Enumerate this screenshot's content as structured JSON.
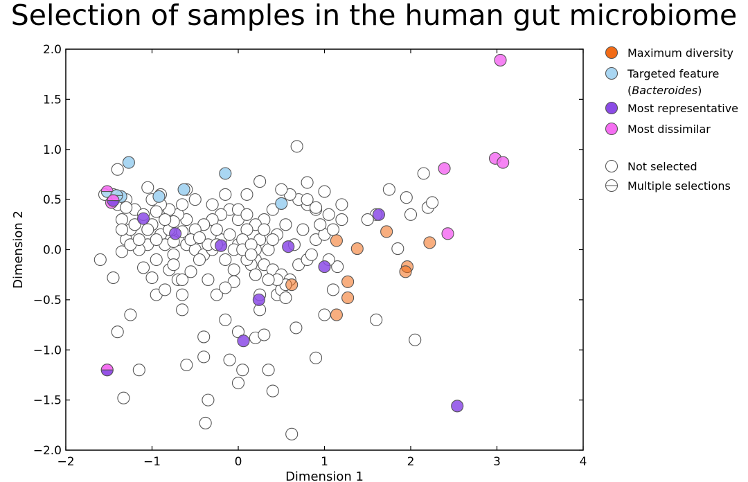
{
  "chart_data": {
    "type": "scatter",
    "title": "Selection of samples in the human gut microbiome",
    "xlabel": "Dimension 1",
    "ylabel": "Dimension 2",
    "xlim": [
      -2,
      4
    ],
    "ylim": [
      -2.0,
      2.0
    ],
    "xticks": [
      "−2",
      "−1",
      "0",
      "1",
      "2",
      "3",
      "4"
    ],
    "xtick_values": [
      -2,
      -1,
      0,
      1,
      2,
      3,
      4
    ],
    "yticks": [
      "−2.0",
      "−1.5",
      "−1.0",
      "−0.5",
      "0.0",
      "0.5",
      "1.0",
      "1.5",
      "2.0"
    ],
    "ytick_values": [
      -2.0,
      -1.5,
      -1.0,
      -0.5,
      0.0,
      0.5,
      1.0,
      1.5,
      2.0
    ],
    "grid": false,
    "legend_position": "outside-right",
    "legend": [
      {
        "label": "Maximum diversity",
        "color": "#f26b16",
        "kind": "marker"
      },
      {
        "label": "Targeted feature",
        "label2": "(Bacteroides)",
        "color": "#a9d6f2",
        "kind": "marker"
      },
      {
        "label": "Most representative",
        "color": "#8b4be6",
        "kind": "marker"
      },
      {
        "label": "Most dissimilar",
        "color": "#f56ef2",
        "kind": "marker"
      },
      {
        "label": "Not selected",
        "color": "#ffffff",
        "kind": "marker"
      },
      {
        "label": "Multiple selections",
        "color": "#ffffff",
        "kind": "split"
      }
    ],
    "series": [
      {
        "name": "Not selected",
        "color": "#ffffff",
        "alpha": 1.0,
        "points": [
          [
            -1.6,
            -0.1
          ],
          [
            -1.45,
            -0.28
          ],
          [
            -1.4,
            -0.82
          ],
          [
            -1.35,
            -0.02
          ],
          [
            -1.3,
            0.1
          ],
          [
            -1.25,
            -0.65
          ],
          [
            -1.15,
            -1.2
          ],
          [
            -1.33,
            -1.48
          ],
          [
            -1.1,
            -0.18
          ],
          [
            -1.0,
            -0.28
          ],
          [
            -0.95,
            -0.45
          ],
          [
            -0.85,
            -0.4
          ],
          [
            -1.05,
            0.05
          ],
          [
            -1.15,
            0.0
          ],
          [
            -1.25,
            0.2
          ],
          [
            -1.35,
            0.3
          ],
          [
            -1.4,
            0.45
          ],
          [
            -1.45,
            0.55
          ],
          [
            -1.3,
            0.5
          ],
          [
            -1.2,
            0.4
          ],
          [
            -1.1,
            0.35
          ],
          [
            -1.0,
            0.25
          ],
          [
            -0.9,
            0.15
          ],
          [
            -0.8,
            0.2
          ],
          [
            -0.7,
            0.1
          ],
          [
            -0.6,
            0.05
          ],
          [
            -0.5,
            0.0
          ],
          [
            -0.4,
            -0.05
          ],
          [
            -0.3,
            0.0
          ],
          [
            -0.2,
            0.1
          ],
          [
            -0.1,
            0.15
          ],
          [
            0.0,
            0.05
          ],
          [
            0.1,
            0.0
          ],
          [
            0.2,
            -0.1
          ],
          [
            0.3,
            -0.15
          ],
          [
            0.4,
            -0.2
          ],
          [
            0.5,
            -0.25
          ],
          [
            0.6,
            -0.3
          ],
          [
            0.7,
            -0.15
          ],
          [
            0.8,
            -0.1
          ],
          [
            0.9,
            0.1
          ],
          [
            1.0,
            0.15
          ],
          [
            1.1,
            0.2
          ],
          [
            1.2,
            0.3
          ],
          [
            0.9,
            0.4
          ],
          [
            0.8,
            0.45
          ],
          [
            0.7,
            0.5
          ],
          [
            0.6,
            0.55
          ],
          [
            0.5,
            0.6
          ],
          [
            0.4,
            0.4
          ],
          [
            0.3,
            0.3
          ],
          [
            0.2,
            0.25
          ],
          [
            0.1,
            0.2
          ],
          [
            0.0,
            0.3
          ],
          [
            -0.1,
            0.4
          ],
          [
            -0.2,
            0.35
          ],
          [
            -0.3,
            0.3
          ],
          [
            -0.4,
            0.25
          ],
          [
            -0.5,
            0.2
          ],
          [
            -0.6,
            0.3
          ],
          [
            -0.7,
            0.35
          ],
          [
            -0.8,
            0.4
          ],
          [
            -0.9,
            0.45
          ],
          [
            -1.0,
            0.5
          ],
          [
            -1.05,
            0.62
          ],
          [
            -1.4,
            0.8
          ],
          [
            -0.3,
            0.45
          ],
          [
            -0.15,
            0.55
          ],
          [
            0.1,
            0.55
          ],
          [
            0.25,
            0.68
          ],
          [
            0.68,
            1.03
          ],
          [
            0.8,
            0.67
          ],
          [
            0.8,
            0.5
          ],
          [
            0.9,
            0.42
          ],
          [
            1.0,
            0.58
          ],
          [
            1.05,
            0.35
          ],
          [
            1.2,
            0.45
          ],
          [
            1.15,
            -0.17
          ],
          [
            1.1,
            -0.4
          ],
          [
            1.0,
            -0.65
          ],
          [
            1.6,
            0.35
          ],
          [
            1.5,
            0.3
          ],
          [
            1.75,
            0.6
          ],
          [
            1.95,
            0.52
          ],
          [
            2.0,
            0.35
          ],
          [
            2.15,
            0.76
          ],
          [
            2.2,
            0.42
          ],
          [
            2.25,
            0.47
          ],
          [
            1.85,
            0.01
          ],
          [
            1.6,
            -0.7
          ],
          [
            2.05,
            -0.9
          ],
          [
            0.9,
            -1.08
          ],
          [
            0.67,
            -0.78
          ],
          [
            0.45,
            -0.45
          ],
          [
            0.5,
            -0.4
          ],
          [
            0.25,
            -0.45
          ],
          [
            0.25,
            -0.6
          ],
          [
            0.2,
            -0.88
          ],
          [
            0.3,
            -0.85
          ],
          [
            0.0,
            -0.82
          ],
          [
            0.05,
            -1.2
          ],
          [
            0.0,
            -1.33
          ],
          [
            -0.1,
            -1.1
          ],
          [
            -0.15,
            -0.7
          ],
          [
            -0.25,
            -0.45
          ],
          [
            -0.35,
            -0.3
          ],
          [
            -0.4,
            -0.87
          ],
          [
            -0.4,
            -1.07
          ],
          [
            -0.35,
            -1.5
          ],
          [
            -0.38,
            -1.73
          ],
          [
            -0.6,
            -1.15
          ],
          [
            -0.65,
            -0.6
          ],
          [
            -0.65,
            -0.45
          ],
          [
            -0.7,
            -0.3
          ],
          [
            -0.8,
            -0.2
          ],
          [
            0.35,
            -1.2
          ],
          [
            0.4,
            -1.41
          ],
          [
            0.62,
            -1.84
          ],
          [
            -0.6,
            0.6
          ],
          [
            -0.5,
            0.5
          ],
          [
            -0.75,
            0.28
          ],
          [
            -1.3,
            0.42
          ],
          [
            -1.2,
            0.25
          ],
          [
            -1.25,
            0.05
          ],
          [
            -0.9,
            0.55
          ],
          [
            -0.85,
            0.3
          ],
          [
            -0.75,
            -0.05
          ],
          [
            -0.65,
            0.45
          ],
          [
            -0.55,
            0.1
          ],
          [
            -0.45,
            -0.1
          ],
          [
            -0.35,
            0.05
          ],
          [
            -0.25,
            0.2
          ],
          [
            -0.15,
            -0.1
          ],
          [
            -0.05,
            -0.2
          ],
          [
            0.05,
            0.1
          ],
          [
            0.15,
            -0.15
          ],
          [
            0.25,
            0.1
          ],
          [
            0.35,
            0.0
          ],
          [
            0.45,
            0.15
          ],
          [
            0.55,
            0.25
          ],
          [
            0.65,
            0.05
          ],
          [
            0.75,
            0.2
          ],
          [
            0.85,
            -0.05
          ],
          [
            0.95,
            0.25
          ],
          [
            1.05,
            -0.1
          ],
          [
            0.0,
            0.4
          ],
          [
            0.1,
            0.35
          ],
          [
            0.2,
            0.0
          ],
          [
            0.3,
            0.2
          ],
          [
            0.4,
            0.1
          ],
          [
            0.55,
            -0.35
          ],
          [
            0.55,
            -0.48
          ],
          [
            0.45,
            -0.3
          ],
          [
            0.35,
            -0.3
          ],
          [
            0.2,
            -0.25
          ],
          [
            0.1,
            -0.1
          ],
          [
            -0.05,
            -0.32
          ],
          [
            -0.15,
            -0.38
          ],
          [
            -0.25,
            0.05
          ],
          [
            -0.45,
            0.12
          ],
          [
            -0.55,
            -0.22
          ],
          [
            -0.65,
            -0.3
          ],
          [
            -0.85,
            0.05
          ],
          [
            -0.95,
            0.1
          ],
          [
            -1.05,
            0.2
          ],
          [
            -1.15,
            0.1
          ],
          [
            -1.35,
            0.2
          ],
          [
            -0.95,
            0.38
          ],
          [
            -0.75,
            0.08
          ],
          [
            -0.65,
            0.18
          ],
          [
            -0.05,
            0.0
          ],
          [
            0.05,
            0.0
          ],
          [
            0.15,
            0.05
          ],
          [
            0.15,
            -0.05
          ],
          [
            -1.55,
            0.55
          ],
          [
            -0.75,
            -0.15
          ],
          [
            -0.95,
            -0.1
          ]
        ]
      },
      {
        "name": "Maximum diversity",
        "color": "#f26b16",
        "alpha": 0.55,
        "points": [
          [
            0.62,
            -0.35
          ],
          [
            1.14,
            0.09
          ],
          [
            1.38,
            0.01
          ],
          [
            1.27,
            -0.32
          ],
          [
            1.27,
            -0.48
          ],
          [
            1.14,
            -0.65
          ],
          [
            1.72,
            0.18
          ],
          [
            1.96,
            -0.17
          ],
          [
            1.94,
            -0.22
          ],
          [
            2.22,
            0.07
          ]
        ]
      },
      {
        "name": "Targeted feature",
        "color": "#a9d6f2",
        "alpha": 1.0,
        "points": [
          [
            -1.27,
            0.87
          ],
          [
            -0.92,
            0.53
          ],
          [
            -0.63,
            0.6
          ],
          [
            -0.15,
            0.76
          ],
          [
            0.5,
            0.46
          ],
          [
            -1.36,
            0.53
          ]
        ]
      },
      {
        "name": "Most representative",
        "color": "#8b4be6",
        "alpha": 0.85,
        "points": [
          [
            -1.1,
            0.31
          ],
          [
            -0.73,
            0.16
          ],
          [
            -0.2,
            0.04
          ],
          [
            0.58,
            0.03
          ],
          [
            1.0,
            -0.17
          ],
          [
            1.63,
            0.35
          ],
          [
            0.24,
            -0.5
          ],
          [
            0.06,
            -0.91
          ],
          [
            2.54,
            -1.56
          ]
        ]
      },
      {
        "name": "Most dissimilar",
        "color": "#f56ef2",
        "alpha": 0.85,
        "points": [
          [
            -1.47,
            0.47
          ],
          [
            3.04,
            1.89
          ],
          [
            2.39,
            0.81
          ],
          [
            2.98,
            0.91
          ],
          [
            3.07,
            0.87
          ],
          [
            2.43,
            0.16
          ],
          [
            -1.52,
            -1.2
          ]
        ]
      },
      {
        "name": "Multiple selections",
        "color": "#ffffff",
        "alpha": 1.0,
        "points": [
          [
            -1.52,
            0.58
          ],
          [
            -1.41,
            0.54
          ],
          [
            -1.45,
            0.49
          ],
          [
            -1.52,
            -1.2
          ]
        ],
        "pairs": [
          [
            "#f56ef2",
            "#a9d6f2"
          ],
          [
            "#a9d6f2",
            "#a9d6f2"
          ],
          [
            "#f56ef2",
            "#8b4be6"
          ],
          [
            "#f56ef2",
            "#8b4be6"
          ]
        ]
      }
    ]
  }
}
